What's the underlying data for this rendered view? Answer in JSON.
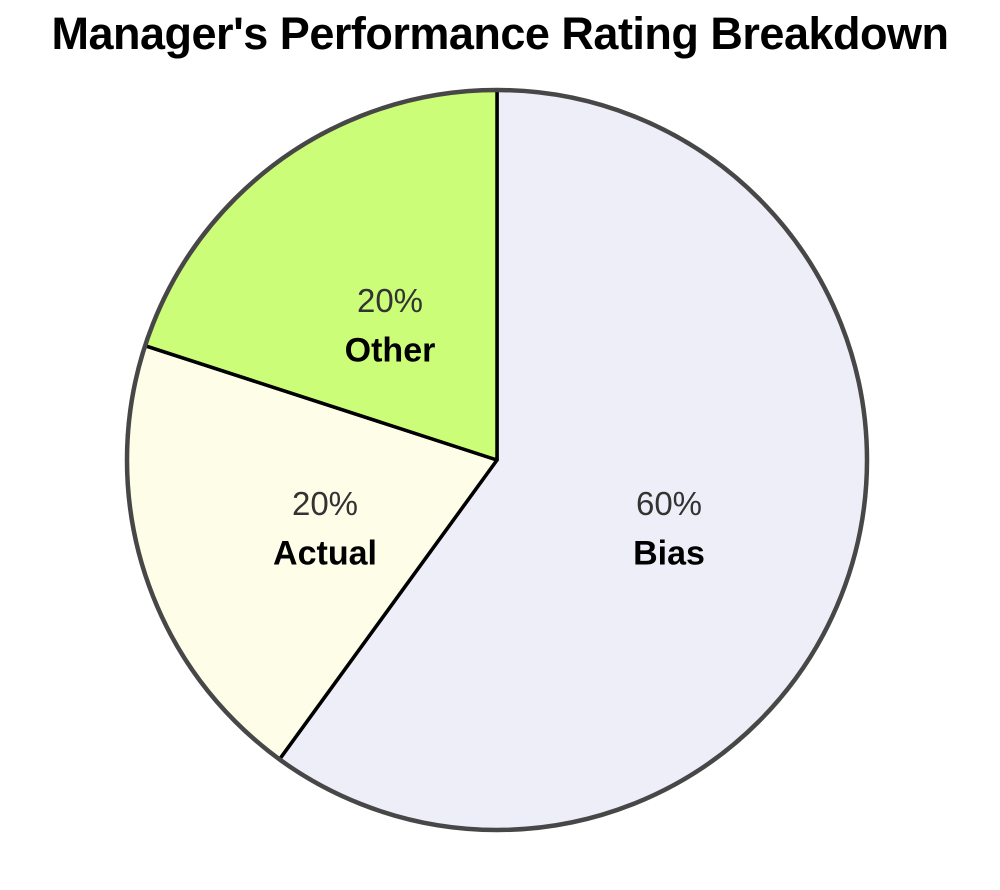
{
  "chart_data": {
    "type": "pie",
    "title": "Manager's Performance Rating Breakdown",
    "slices": [
      {
        "label": "Bias",
        "value": 60,
        "pct_text": "60%",
        "color": "#EEEEF9"
      },
      {
        "label": "Actual",
        "value": 20,
        "pct_text": "20%",
        "color": "#FDFDE8"
      },
      {
        "label": "Other",
        "value": 20,
        "pct_text": "20%",
        "color": "#CCFD78"
      }
    ],
    "start_angle_deg": 0,
    "direction": "clockwise",
    "labels_position": "inside",
    "divider_stroke_color": "#000000",
    "outline_color": "#474747",
    "pct_text_color": "#333333",
    "name_text_color": "#000000",
    "background_color": "#FFFFFF",
    "legend": "none"
  }
}
